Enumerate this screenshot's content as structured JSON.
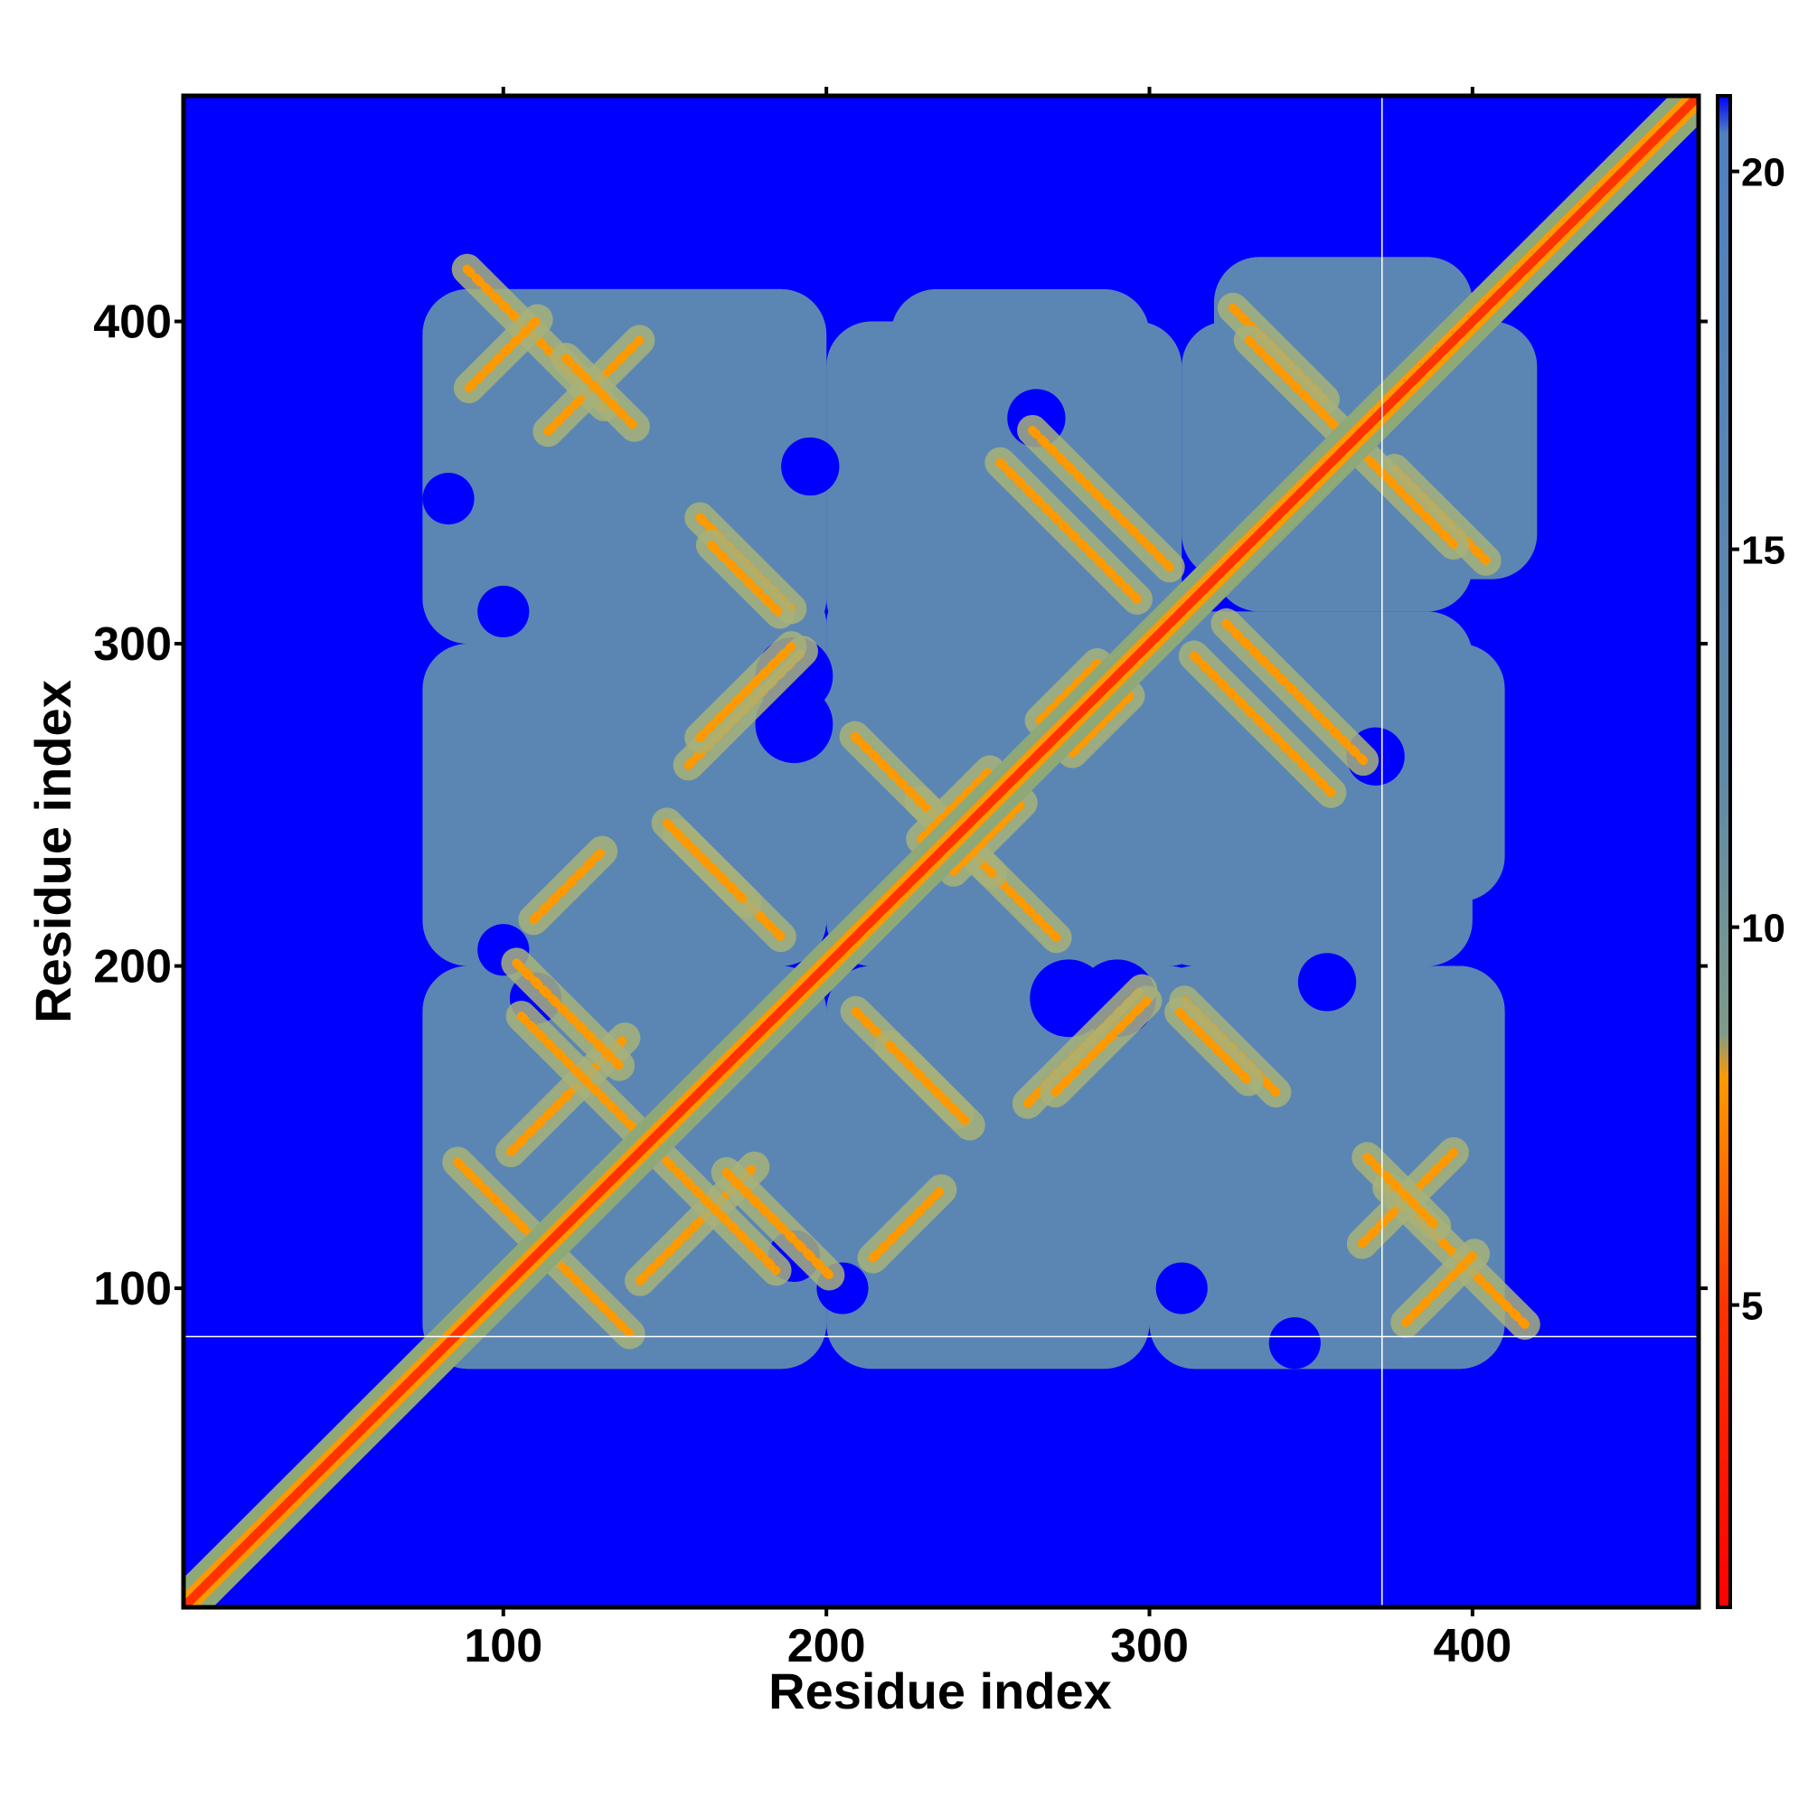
{
  "chart_data": {
    "type": "heatmap",
    "title": "",
    "xlabel": "Residue index",
    "ylabel": "Residue index",
    "xlim": [
      1,
      470
    ],
    "ylim": [
      1,
      470
    ],
    "x_ticks": [
      100,
      200,
      300,
      400
    ],
    "y_ticks": [
      100,
      200,
      300,
      400
    ],
    "colorbar": {
      "min": 1,
      "max": 21,
      "ticks": [
        5,
        10,
        15,
        20
      ],
      "stops": [
        {
          "value": 1,
          "color": "#ff0000"
        },
        {
          "value": 5,
          "color": "#ff3300"
        },
        {
          "value": 8,
          "color": "#ff9900"
        },
        {
          "value": 8.6,
          "color": "#7f9a8a"
        },
        {
          "value": 12,
          "color": "#5f8aa8"
        },
        {
          "value": 20.5,
          "color": "#5080c0"
        },
        {
          "value": 21,
          "color": "#0000ff"
        }
      ]
    },
    "cutoff_value": 21,
    "background_color": "#0000ff",
    "contact_region_color": "#5b86b4",
    "diagonal": {
      "from": 1,
      "to": 470,
      "value": 3
    },
    "contact_features": [
      {
        "kind": "antidiagonal",
        "center": [
          110,
          395
        ],
        "length": 60,
        "value": 7
      },
      {
        "kind": "diagonal",
        "center": [
          128,
          380
        ],
        "length": 40,
        "value": 8
      },
      {
        "kind": "antidiagonal",
        "center": [
          175,
          325
        ],
        "length": 40,
        "value": 8
      },
      {
        "kind": "diagonal",
        "center": [
          175,
          280
        ],
        "length": 50,
        "value": 7
      },
      {
        "kind": "antidiagonal",
        "center": [
          170,
          225
        ],
        "length": 45,
        "value": 7
      },
      {
        "kind": "diagonal",
        "center": [
          120,
          160
        ],
        "length": 50,
        "value": 8
      },
      {
        "kind": "antidiagonal",
        "center": [
          120,
          185
        ],
        "length": 45,
        "value": 7
      },
      {
        "kind": "antidiagonal",
        "center": [
          125,
          100
        ],
        "length": 40,
        "value": 7
      },
      {
        "kind": "antidiagonal",
        "center": [
          165,
          125
        ],
        "length": 55,
        "value": 7
      },
      {
        "kind": "diagonal",
        "center": [
          225,
          120
        ],
        "length": 30,
        "value": 8
      },
      {
        "kind": "antidiagonal",
        "center": [
          232,
          163
        ],
        "length": 35,
        "value": 7
      },
      {
        "kind": "antidiagonal",
        "center": [
          250,
          230
        ],
        "length": 60,
        "value": 7
      },
      {
        "kind": "diagonal",
        "center": [
          250,
          240
        ],
        "length": 30,
        "value": 6
      },
      {
        "kind": "antidiagonal",
        "center": [
          285,
          345
        ],
        "length": 60,
        "value": 7
      },
      {
        "kind": "antidiagonal",
        "center": [
          335,
          275
        ],
        "length": 60,
        "value": 7
      },
      {
        "kind": "antidiagonal",
        "center": [
          340,
          390
        ],
        "length": 40,
        "value": 7
      },
      {
        "kind": "antidiagonal",
        "center": [
          380,
          345
        ],
        "length": 40,
        "value": 7
      },
      {
        "kind": "diagonal",
        "center": [
          285,
          175
        ],
        "length": 40,
        "value": 8
      },
      {
        "kind": "antidiagonal",
        "center": [
          320,
          175
        ],
        "length": 30,
        "value": 8
      },
      {
        "kind": "diagonal",
        "center": [
          390,
          100
        ],
        "length": 30,
        "value": 8
      },
      {
        "kind": "antidiagonal",
        "center": [
          378,
          130
        ],
        "length": 30,
        "value": 8
      },
      {
        "kind": "diagonal",
        "center": [
          275,
          285
        ],
        "length": 25,
        "value": 8
      }
    ],
    "contact_region_blobs": [
      {
        "x": [
          75,
          200
        ],
        "y": [
          300,
          410
        ]
      },
      {
        "x": [
          200,
          310
        ],
        "y": [
          300,
          400
        ]
      },
      {
        "x": [
          310,
          420
        ],
        "y": [
          320,
          400
        ]
      },
      {
        "x": [
          75,
          200
        ],
        "y": [
          200,
          300
        ]
      },
      {
        "x": [
          200,
          320
        ],
        "y": [
          200,
          300
        ]
      },
      {
        "x": [
          300,
          410
        ],
        "y": [
          220,
          300
        ]
      },
      {
        "x": [
          75,
          200
        ],
        "y": [
          75,
          200
        ]
      },
      {
        "x": [
          200,
          320
        ],
        "y": [
          90,
          200
        ]
      },
      {
        "x": [
          300,
          410
        ],
        "y": [
          75,
          200
        ]
      }
    ],
    "holes": [
      {
        "center": [
          190,
          275
        ],
        "r": 12
      },
      {
        "center": [
          290,
          190
        ],
        "r": 12
      },
      {
        "center": [
          110,
          190
        ],
        "r": 8
      },
      {
        "center": [
          195,
          355
        ],
        "r": 9
      },
      {
        "center": [
          370,
          265
        ],
        "r": 9
      },
      {
        "center": [
          205,
          100
        ],
        "r": 8
      },
      {
        "center": [
          310,
          100
        ],
        "r": 8
      },
      {
        "center": [
          83,
          345
        ],
        "r": 8
      }
    ],
    "reference_lines": {
      "vertical_x": 372,
      "horizontal_y": 85,
      "color": "#ffffff"
    },
    "grid": false,
    "legend": "colorbar-right"
  }
}
